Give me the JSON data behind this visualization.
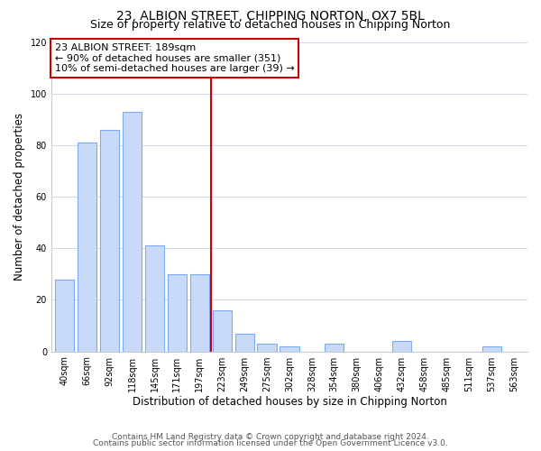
{
  "title": "23, ALBION STREET, CHIPPING NORTON, OX7 5BL",
  "subtitle": "Size of property relative to detached houses in Chipping Norton",
  "xlabel": "Distribution of detached houses by size in Chipping Norton",
  "ylabel": "Number of detached properties",
  "bar_labels": [
    "40sqm",
    "66sqm",
    "92sqm",
    "118sqm",
    "145sqm",
    "171sqm",
    "197sqm",
    "223sqm",
    "249sqm",
    "275sqm",
    "302sqm",
    "328sqm",
    "354sqm",
    "380sqm",
    "406sqm",
    "432sqm",
    "458sqm",
    "485sqm",
    "511sqm",
    "537sqm",
    "563sqm"
  ],
  "bar_values": [
    28,
    81,
    86,
    93,
    41,
    30,
    30,
    16,
    7,
    3,
    2,
    0,
    3,
    0,
    0,
    4,
    0,
    0,
    0,
    2,
    0
  ],
  "bar_color": "#c9daf8",
  "bar_edge_color": "#7baaf7",
  "vline_x_index": 6,
  "vline_color": "#cc0000",
  "ylim": [
    0,
    120
  ],
  "yticks": [
    0,
    20,
    40,
    60,
    80,
    100,
    120
  ],
  "annotation_lines": [
    "23 ALBION STREET: 189sqm",
    "← 90% of detached houses are smaller (351)",
    "10% of semi-detached houses are larger (39) →"
  ],
  "footnote1": "Contains HM Land Registry data © Crown copyright and database right 2024.",
  "footnote2": "Contains public sector information licensed under the Open Government Licence v3.0.",
  "bg_color": "#ffffff",
  "grid_color": "#d0d8e8",
  "title_fontsize": 10,
  "subtitle_fontsize": 9,
  "tick_fontsize": 7,
  "ylabel_fontsize": 8.5,
  "xlabel_fontsize": 8.5,
  "ann_fontsize": 8,
  "footnote_fontsize": 6.5
}
